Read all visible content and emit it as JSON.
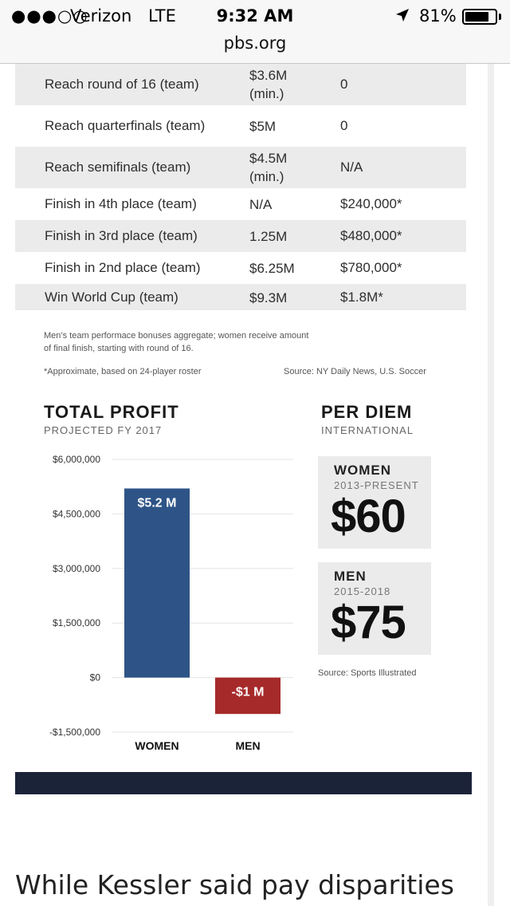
{
  "status_bar": {
    "signal": "●●●○○",
    "carrier": "Verizon",
    "network": "LTE",
    "time": "9:32 AM",
    "battery": "81%",
    "battery_level": 0.81
  },
  "browser": {
    "url": "pbs.org"
  },
  "table": {
    "rows": [
      {
        "label": "Reach round of 16 (team)",
        "men_l1": "$3.6M",
        "men_l2": "(min.)",
        "women": "0",
        "shaded": true
      },
      {
        "label": "Reach quarterfinals (team)",
        "men_l1": "$5M",
        "men_l2": "",
        "women": "0",
        "shaded": false
      },
      {
        "label": "Reach semifinals (team)",
        "men_l1": "$4.5M",
        "men_l2": "(min.)",
        "women": "N/A",
        "shaded": true
      },
      {
        "label": "Finish in 4th place (team)",
        "men_l1": "N/A",
        "men_l2": "",
        "women": "$240,000*",
        "shaded": false
      },
      {
        "label": "Finish in 3rd place (team)",
        "men_l1": "1.25M",
        "men_l2": "",
        "women": "$480,000*",
        "shaded": true
      },
      {
        "label": "Finish in 2nd place (team)",
        "men_l1": "$6.25M",
        "men_l2": "",
        "women": "$780,000*",
        "shaded": false
      },
      {
        "label": "Win World Cup (team)",
        "men_l1": "$9.3M",
        "men_l2": "",
        "women": "$1.8M*",
        "shaded": true
      }
    ],
    "note_line1": "Men’s team performace bonuses aggregate; women receive amount",
    "note_line2": "of final finish, starting with round of 16.",
    "footnote": "*Approximate, based on 24-player roster",
    "source": "Source: NY Daily News, U.S. Soccer"
  },
  "chart_data": {
    "type": "bar",
    "title": "TOTAL PROFIT",
    "subtitle": "PROJECTED FY 2017",
    "categories": [
      "WOMEN",
      "MEN"
    ],
    "values": [
      5200000,
      -1000000
    ],
    "data_labels": [
      "$5.2 M",
      "-$1 M"
    ],
    "colors": [
      "#2e5487",
      "#a62a2a"
    ],
    "ylim": [
      -1500000,
      6000000
    ],
    "yticks": [
      6000000,
      4500000,
      3000000,
      1500000,
      0,
      -1500000
    ],
    "ytick_labels": [
      "$6,000,000",
      "$4,500,000",
      "$3,000,000",
      "$1,500,000",
      "$0",
      "-$1,500,000"
    ],
    "grid": true
  },
  "per_diem": {
    "title": "PER DIEM",
    "subtitle": "INTERNATIONAL",
    "items": [
      {
        "label": "WOMEN",
        "years": "2013-PRESENT",
        "amount": "$60"
      },
      {
        "label": "MEN",
        "years": "2015-2018",
        "amount": "$75"
      }
    ],
    "source": "Source: Sports Illustrated"
  },
  "article": {
    "text": "While Kessler said pay disparities"
  }
}
